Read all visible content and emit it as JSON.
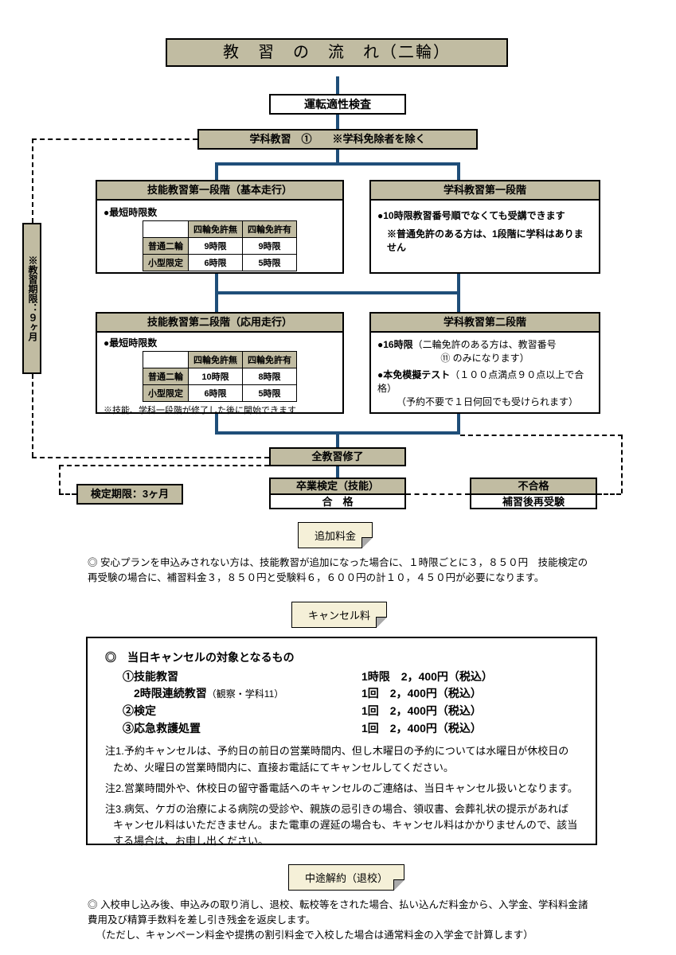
{
  "title": "教　習　の　流　れ（二輪）",
  "colors": {
    "header_bg": "#c1bca2",
    "connector": "#1f4e79",
    "border": "#000000",
    "note_bg": "#f5f0d8"
  },
  "top": {
    "aptitude": "運転適性検査",
    "lecture": "学科教習　①　　※学科免除者を除く"
  },
  "period_side": "※教習期限：９ヶ月",
  "stage1": {
    "skill_hdr": "技能教習第一段階（基本走行）",
    "min_label": "●最短時限数",
    "cols": [
      "",
      "四輪免許無",
      "四輪免許有"
    ],
    "rows": [
      [
        "普通二輪",
        "9時限",
        "9時限"
      ],
      [
        "小型限定",
        "6時限",
        "5時限"
      ]
    ],
    "lect_hdr": "学科教習第一段階",
    "lect_b1": "●10時限教習番号順でなくても受講できます",
    "lect_b2": "※普通免許のある方は、1段階に学科はありません"
  },
  "stage2": {
    "skill_hdr": "技能教習第二段階（応用走行）",
    "min_label": "●最短時限数",
    "cols": [
      "",
      "四輪免許無",
      "四輪免許有"
    ],
    "rows": [
      [
        "普通二輪",
        "10時限",
        "8時限"
      ],
      [
        "小型限定",
        "6時限",
        "5時限"
      ]
    ],
    "skill_note": "※技能、学科一段階が修了した後に開始できます",
    "lect_hdr": "学科教習第二段階",
    "lect_b1a": "●16時限",
    "lect_b1b": "（二輪免許のある方は、教習番号",
    "lect_b1c": "⑪ のみになります）",
    "lect_b2a": "●本免模擬テスト",
    "lect_b2b": "（１００点満点９０点以上で合格）",
    "lect_b2c": "（予約不要で１日何回でも受けられます）"
  },
  "end": {
    "complete": "全教習修了",
    "exam_hdr": "卒業検定（技能）",
    "exam_pass": "合　格",
    "deadline": "検定期限：3ヶ月",
    "fail_hdr": "不合格",
    "fail_body": "補習後再受験"
  },
  "extra_fee": {
    "label": "追加料金",
    "text": "安心プランを申込みされない方は、技能教習が追加になった場合に、１時限ごとに３，８５０円　技能検定の再受験の場合に、補習料金３，８５０円と受験料６，６００円の計１０，４５０円が必要になります。"
  },
  "cancel": {
    "label": "キャンセル料",
    "hdr": "◎　当日キャンセルの対象となるもの",
    "items": [
      {
        "l": "①技能教習",
        "r": "1時限　2，400円（税込）"
      },
      {
        "l": "　2時限連続教習（観察・学科11）",
        "r": "1回　2，400円（税込）"
      },
      {
        "l": "②検定",
        "r": "1回　2，400円（税込）"
      },
      {
        "l": "③応急救護処置",
        "r": "1回　2，400円（税込）"
      }
    ],
    "n1": "注1.予約キャンセルは、予約日の前日の営業時間内、但し木曜日の予約については水曜日が休校日のため、火曜日の営業時間内に、直接お電話にてキャンセルしてください。",
    "n2": "注2.営業時間外や、休校日の留守番電話へのキャンセルのご連絡は、当日キャンセル扱いとなります。",
    "n3": "注3.病気、ケガの治療による病院の受診や、親族の忌引きの場合、領収書、会葬礼状の提示があればキャンセル料はいただきません。また電車の遅延の場合も、キャンセル料はかかりませんので、該当する場合は、お申し出ください。"
  },
  "withdraw": {
    "label": "中途解約（退校）",
    "text": "入校申し込み後、申込みの取り消し、退校、転校等をされた場合、払い込んだ料金から、入学金、学科料金諸費用及び精算手数料を差し引き残金を返戻します。",
    "text2": "（ただし、キャンペーン料金や提携の割引料金で入校した場合は通常料金の入学金で計算します）"
  }
}
